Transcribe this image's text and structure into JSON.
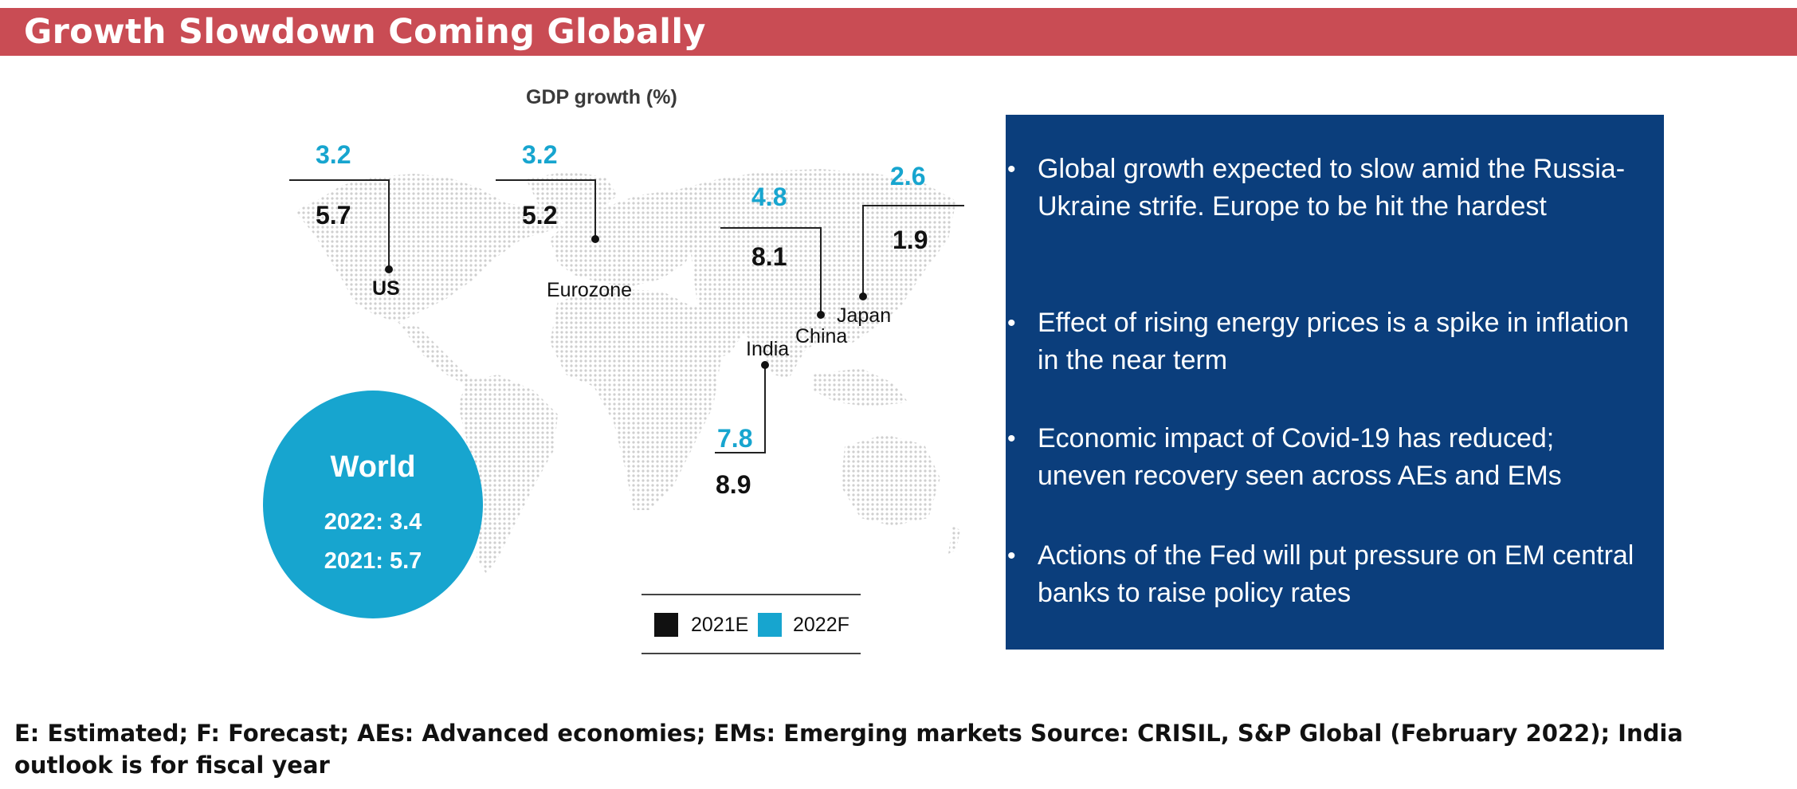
{
  "header": {
    "title": "Growth Slowdown Coming Globally"
  },
  "chart_data": {
    "type": "map",
    "title": "GDP growth (%)",
    "legend": [
      {
        "label": "2021E",
        "color": "#111111"
      },
      {
        "label": "2022F",
        "color": "#17a5cf"
      }
    ],
    "regions": [
      {
        "name": "US",
        "value_2021E": "5.7",
        "value_2022F": "3.2"
      },
      {
        "name": "Eurozone",
        "value_2021E": "5.2",
        "value_2022F": "3.2"
      },
      {
        "name": "China",
        "value_2021E": "8.1",
        "value_2022F": "4.8"
      },
      {
        "name": "Japan",
        "value_2021E": "1.9",
        "value_2022F": "2.6"
      },
      {
        "name": "India",
        "value_2021E": "8.9",
        "value_2022F": "7.8"
      }
    ],
    "world": {
      "label": "World",
      "line_2022": "2022: 3.4",
      "line_2021": "2021: 5.7"
    }
  },
  "panel": {
    "bullets": [
      "Global growth expected to slow amid the Russia-Ukraine strife. Europe to be hit the hardest",
      "Effect of rising energy prices is a spike in inflation in the near term",
      "Economic impact of Covid-19 has reduced; uneven recovery seen across AEs and EMs",
      "Actions of the Fed will put pressure on EM central banks to raise policy rates"
    ]
  },
  "footnote": "E: Estimated; F: Forecast; AEs: Advanced economies; EMs: Emerging markets Source: CRISIL, S&P Global (February 2022); India outlook is for fiscal year",
  "colors": {
    "title_bar": "#c94c54",
    "accent_blue": "#17a5cf",
    "panel_blue": "#0b3e7c",
    "map_dots": "#d2d2d2"
  }
}
